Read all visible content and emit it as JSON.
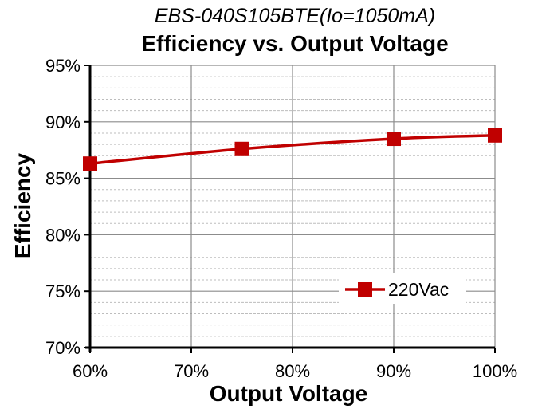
{
  "chart_data": {
    "type": "line",
    "subtitle": "EBS-040S105BTE(Io=1050mA)",
    "title": "Efficiency vs. Output Voltage",
    "xlabel": "Output Voltage",
    "ylabel": "Efficiency",
    "x_ticks": [
      "60%",
      "70%",
      "80%",
      "90%",
      "100%"
    ],
    "y_ticks": [
      "70%",
      "75%",
      "80%",
      "85%",
      "90%",
      "95%"
    ],
    "xlim": [
      60,
      100
    ],
    "ylim": [
      70,
      95
    ],
    "series": [
      {
        "name": "220Vac",
        "color": "#c00000",
        "marker": "square",
        "x": [
          60,
          75,
          90,
          100
        ],
        "y": [
          86.3,
          87.6,
          88.5,
          88.8
        ]
      }
    ],
    "grid": "major and minor horizontal, major vertical",
    "legend_position": "bottom-right"
  }
}
